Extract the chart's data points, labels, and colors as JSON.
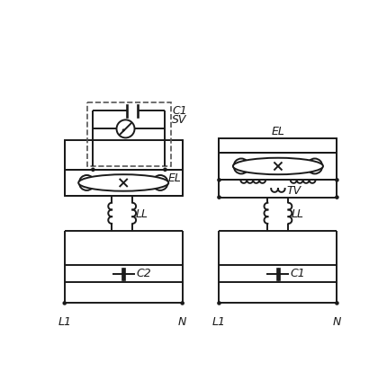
{
  "bg_color": "#ffffff",
  "line_color": "#1a1a1a",
  "dashed_color": "#555555",
  "fig_width": 4.3,
  "fig_height": 4.14,
  "dpi": 100,
  "labels": {
    "left_C1": "C1",
    "left_SV": "SV",
    "left_EL": "EL",
    "left_LL": "LL",
    "left_C2": "C2",
    "left_L1": "L1",
    "left_N": "N",
    "right_EL": "EL",
    "right_TV": "TV",
    "right_LL": "LL",
    "right_C1": "C1",
    "right_L1": "L1",
    "right_N": "N"
  }
}
